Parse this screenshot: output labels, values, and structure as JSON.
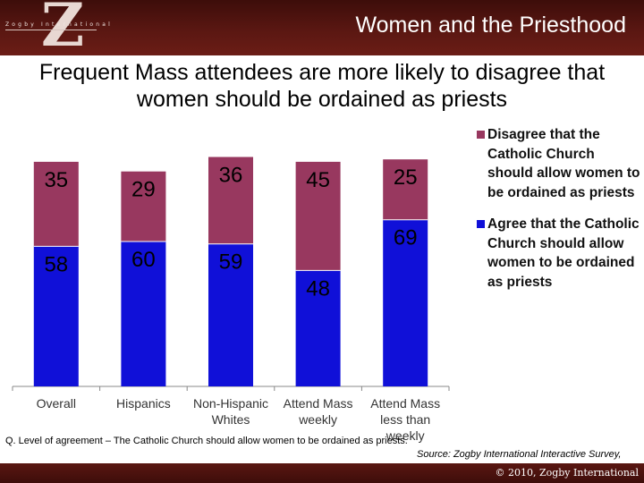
{
  "header": {
    "logo_letter": "Z",
    "logo_text": "Zogby International",
    "title": "Women and the Priesthood"
  },
  "chart_data": {
    "type": "bar",
    "stacked": true,
    "title": "Frequent Mass attendees are more likely to disagree that women should be ordained as priests",
    "categories": [
      "Overall",
      "Hispanics",
      "Non-Hispanic Whites",
      "Attend Mass weekly",
      "Attend Mass less than weekly"
    ],
    "series": [
      {
        "name": "Agree that the Catholic Church should allow women to be ordained as priests",
        "color": "#1010d8",
        "values": [
          58,
          60,
          59,
          48,
          69
        ]
      },
      {
        "name": "Disagree that the Catholic Church should allow women to be ordained as priests",
        "color": "#98385f",
        "values": [
          35,
          29,
          36,
          45,
          25
        ]
      }
    ],
    "ylim": [
      0,
      100
    ],
    "grid": false,
    "legend_position": "right"
  },
  "footer": {
    "question": "Q. Level of agreement – The Catholic Church should allow women to be ordained as priests.",
    "source": "Source: Zogby International Interactive Survey,",
    "copyright": "© 2010, Zogby International"
  }
}
